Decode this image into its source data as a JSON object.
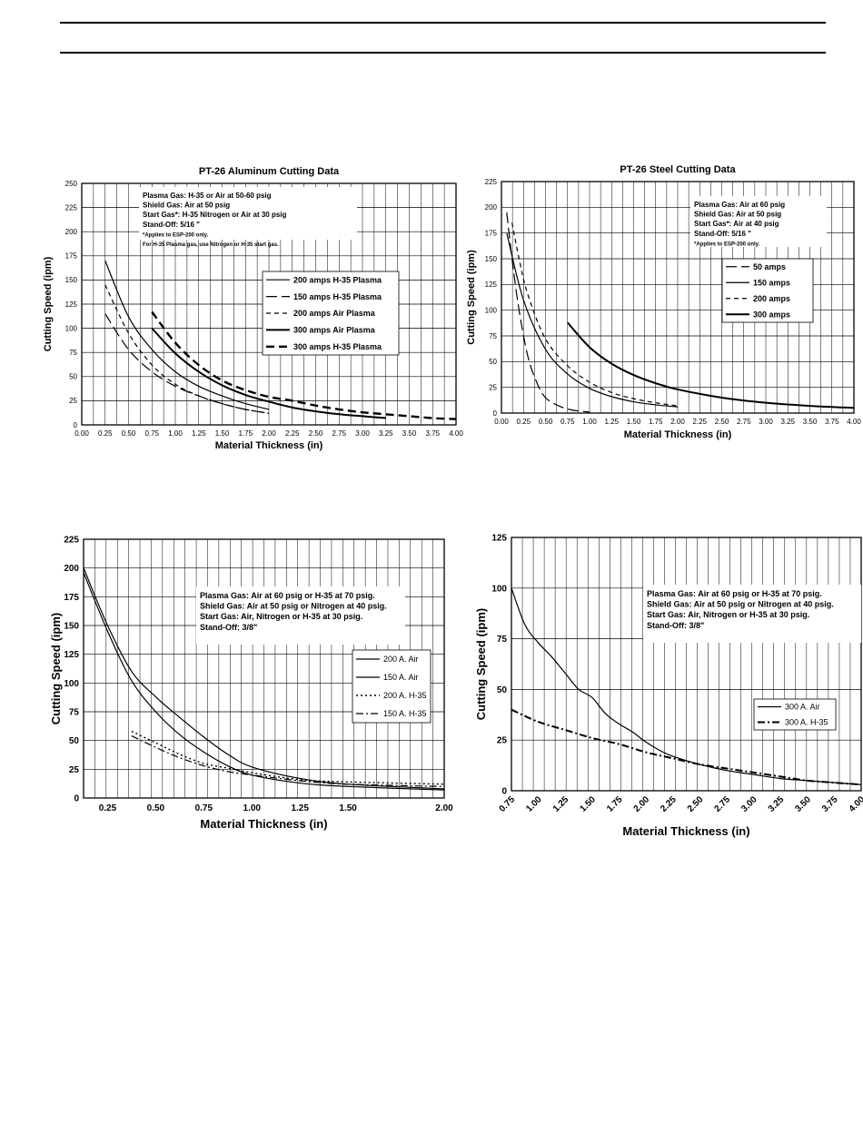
{
  "chart_data": [
    {
      "type": "line",
      "title": "PT-26 Aluminum Cutting Data",
      "xlabel": "Material Thickness (in)",
      "ylabel": "Cutting Speed (ipm)",
      "xlim": [
        0,
        4
      ],
      "ylim": [
        0,
        250
      ],
      "xticks": [
        0,
        0.25,
        0.5,
        0.75,
        1,
        1.25,
        1.5,
        1.75,
        2,
        2.25,
        2.5,
        2.75,
        3,
        3.25,
        3.5,
        3.75,
        4
      ],
      "xtick_labels": [
        "0.00",
        "0.25",
        "0.50",
        "0.75",
        "1.00",
        "1.25",
        "1.50",
        "1.75",
        "2.00",
        "2.25",
        "2.50",
        "2.75",
        "3.00",
        "3.25",
        "3.50",
        "3.75",
        "4.00"
      ],
      "yticks": [
        0,
        25,
        50,
        75,
        100,
        125,
        150,
        175,
        200,
        225,
        250
      ],
      "ytick_labels": [
        "0",
        "25",
        "50",
        "75",
        "100",
        "125",
        "150",
        "175",
        "200",
        "225",
        "250"
      ],
      "grid": true,
      "notes": [
        "Plasma Gas: H-35  or Air at 50-60 psig",
        "Shield Gas: Air at 50 psig",
        "Start Gas*: H-35 Nitrogen or Air at 30 psig",
        "Stand-Off: 5/16 \"",
        "*Applies to ESP-200 only.",
        " For H-35 Plasma gas, use Nitrogen or H-35 start gas."
      ],
      "legend_position": "upper-right",
      "series": [
        {
          "name": "200 amps H-35 Plasma",
          "style": "solid",
          "x": [
            0.25,
            0.5,
            0.75,
            1,
            1.25,
            1.5,
            1.75,
            2
          ],
          "y": [
            170,
            112,
            78,
            55,
            40,
            30,
            22,
            16
          ]
        },
        {
          "name": "150 amps H-35 Plasma",
          "style": "longdash",
          "x": [
            0.25,
            0.5,
            0.75,
            1,
            1.25,
            1.5,
            1.75,
            2
          ],
          "y": [
            115,
            78,
            55,
            40,
            30,
            22,
            16,
            12
          ]
        },
        {
          "name": "200 amps Air Plasma",
          "style": "dash",
          "x": [
            0.25,
            0.5,
            0.75,
            1,
            1.25,
            1.5,
            1.75,
            2
          ],
          "y": [
            145,
            95,
            62,
            42,
            30,
            22,
            16,
            12
          ]
        },
        {
          "name": "300 amps Air Plasma",
          "style": "solid-thick",
          "x": [
            0.75,
            1,
            1.25,
            1.5,
            1.75,
            2,
            2.25,
            2.5,
            2.75,
            3,
            3.25
          ],
          "y": [
            100,
            74,
            55,
            41,
            31,
            24,
            18,
            14,
            11,
            9,
            7
          ]
        },
        {
          "name": "300 amps H-35 Plasma",
          "style": "heavydash",
          "x": [
            0.75,
            1,
            1.25,
            1.5,
            1.75,
            2,
            2.25,
            2.5,
            2.75,
            3,
            3.25,
            3.5,
            3.75,
            4
          ],
          "y": [
            117,
            85,
            62,
            46,
            36,
            29,
            25,
            20,
            16,
            13,
            11,
            9,
            7,
            6
          ]
        }
      ]
    },
    {
      "type": "line",
      "title": "PT-26 Steel Cutting Data",
      "xlabel": "Material Thickness (in)",
      "ylabel": "Cutting Speed (ipm)",
      "xlim": [
        0,
        4
      ],
      "ylim": [
        0,
        225
      ],
      "xticks": [
        0,
        0.25,
        0.5,
        0.75,
        1,
        1.25,
        1.5,
        1.75,
        2,
        2.25,
        2.5,
        2.75,
        3,
        3.25,
        3.5,
        3.75,
        4
      ],
      "xtick_labels": [
        "0.00",
        "0.25",
        "0.50",
        "0.75",
        "1.00",
        "1.25",
        "1.50",
        "1.75",
        "2.00",
        "2.25",
        "2.50",
        "2.75",
        "3.00",
        "3.25",
        "3.50",
        "3.75",
        "4.00"
      ],
      "yticks": [
        0,
        25,
        50,
        75,
        100,
        125,
        150,
        175,
        200,
        225
      ],
      "ytick_labels": [
        "0",
        "25",
        "50",
        "75",
        "100",
        "125",
        "150",
        "175",
        "200",
        "225"
      ],
      "grid": true,
      "notes": [
        "Plasma Gas: Air at 60 psig",
        "Shield Gas: Air at 50 psig",
        "Start Gas*: Air at 40 psig",
        "Stand-Off: 5/16 \"",
        "*Applies to ESP-200 only."
      ],
      "legend_position": "upper-right",
      "series": [
        {
          "name": "50 amps",
          "style": "longdash",
          "x": [
            0.06,
            0.12,
            0.2,
            0.3,
            0.4,
            0.5,
            0.65,
            0.8,
            1
          ],
          "y": [
            195,
            150,
            100,
            55,
            30,
            15,
            7,
            3,
            1
          ]
        },
        {
          "name": "150 amps",
          "style": "solid",
          "x": [
            0.06,
            0.25,
            0.5,
            0.75,
            1,
            1.25,
            1.5,
            1.75,
            2
          ],
          "y": [
            175,
            110,
            62,
            38,
            24,
            16,
            11,
            8,
            6
          ]
        },
        {
          "name": "200 amps",
          "style": "dash",
          "x": [
            0.12,
            0.2,
            0.3,
            0.5,
            0.75,
            1,
            1.25,
            1.5,
            1.75,
            2
          ],
          "y": [
            185,
            150,
            115,
            72,
            46,
            30,
            20,
            14,
            10,
            7
          ]
        },
        {
          "name": "300 amps",
          "style": "solid-thick",
          "x": [
            0.75,
            1,
            1.25,
            1.5,
            1.75,
            2,
            2.5,
            3,
            3.5,
            4
          ],
          "y": [
            88,
            64,
            48,
            37,
            29,
            23,
            15,
            10,
            7,
            5
          ]
        }
      ]
    },
    {
      "type": "line",
      "title": "",
      "xlabel": "Material Thickness (in)",
      "ylabel": "Cutting Speed (ipm)",
      "xlim": [
        0.125,
        2
      ],
      "ylim": [
        0,
        225
      ],
      "xticks": [
        0.25,
        0.5,
        0.75,
        1,
        1.25,
        1.5,
        2
      ],
      "xtick_labels": [
        "0.25",
        "0.50",
        "0.75",
        "1.00",
        "1.25",
        "1.50",
        "2.00"
      ],
      "yticks": [
        0,
        25,
        50,
        75,
        100,
        125,
        150,
        175,
        200,
        225
      ],
      "ytick_labels": [
        "0",
        "25",
        "50",
        "75",
        "100",
        "125",
        "150",
        "175",
        "200",
        "225"
      ],
      "grid": true,
      "notes": [
        "Plasma Gas:  Air at 60 psig or H-35 at 70 psig.",
        "Shield Gas:  Air at 50 psig or Nitrogen at 40 psig.",
        "Start Gas:  Air, Nitrogen or H-35 at 30 psig.",
        "Stand-Off:  3/8\""
      ],
      "legend_position": "right",
      "series": [
        {
          "name": "200 A. Air",
          "style": "solid",
          "x": [
            0.125,
            0.25,
            0.375,
            0.5,
            0.625,
            0.75,
            0.875,
            1,
            1.25,
            1.5,
            2
          ],
          "y": [
            200,
            150,
            110,
            88,
            70,
            53,
            38,
            27,
            17,
            12,
            8
          ]
        },
        {
          "name": "150 A. Air",
          "style": "solid",
          "x": [
            0.125,
            0.25,
            0.375,
            0.5,
            0.625,
            0.75,
            0.875,
            1,
            1.25,
            1.5,
            2
          ],
          "y": [
            196,
            145,
            102,
            75,
            55,
            40,
            28,
            20,
            13,
            10,
            7
          ]
        },
        {
          "name": "200 A. H-35",
          "style": "dot",
          "x": [
            0.375,
            0.5,
            0.625,
            0.75,
            0.875,
            1,
            1.25,
            1.5,
            2
          ],
          "y": [
            58,
            48,
            38,
            30,
            26,
            22,
            16,
            14,
            12
          ]
        },
        {
          "name": "150 A. H-35",
          "style": "dashdot",
          "x": [
            0.375,
            0.5,
            0.625,
            0.75,
            0.875,
            1,
            1.25,
            1.5,
            2
          ],
          "y": [
            54,
            44,
            35,
            28,
            23,
            20,
            15,
            12,
            10
          ]
        }
      ]
    },
    {
      "type": "line",
      "title": "",
      "xlabel": "Material Thickness (in)",
      "ylabel": "Cutting Speed (ipm)",
      "xlim": [
        0.75,
        4
      ],
      "ylim": [
        0,
        125
      ],
      "xticks": [
        0.75,
        1,
        1.25,
        1.5,
        1.75,
        2,
        2.25,
        2.5,
        2.75,
        3,
        3.25,
        3.5,
        3.75,
        4
      ],
      "xtick_labels": [
        "0.75",
        "1.00",
        "1.25",
        "1.50",
        "1.75",
        "2.00",
        "2.25",
        "2.50",
        "2.75",
        "3.00",
        "3.25",
        "3.50",
        "3.75",
        "4.00"
      ],
      "yticks": [
        0,
        25,
        50,
        75,
        100,
        125
      ],
      "ytick_labels": [
        "0",
        "25",
        "50",
        "75",
        "100",
        "125"
      ],
      "grid": true,
      "notes": [
        "Plasma Gas:  Air at 60 psig or H-35 at 70 psig.",
        "Shield Gas:  Air at 50 psig or Nitrogen at 40 psig.",
        "Start Gas:  Air, Nitrogen or H-35 at 30 psig.",
        "Stand-Off:  3/8\""
      ],
      "legend_position": "right",
      "series": [
        {
          "name": "300 A. Air",
          "style": "solid",
          "x": [
            0.75,
            0.875,
            1,
            1.125,
            1.25,
            1.375,
            1.5,
            1.625,
            1.75,
            1.875,
            2,
            2.125,
            2.25,
            2.5,
            2.75,
            3,
            3.25,
            3.5,
            3.75,
            4
          ],
          "y": [
            100,
            82,
            73,
            66,
            58,
            50,
            46,
            38,
            33,
            29,
            24,
            20,
            17,
            13,
            10,
            8,
            6,
            5,
            4,
            3
          ]
        },
        {
          "name": "300 A. H-35",
          "style": "dashdot-thick",
          "x": [
            0.75,
            1,
            1.25,
            1.5,
            1.75,
            2,
            2.25,
            2.5,
            2.75,
            3,
            3.25,
            3.5,
            3.75,
            4
          ],
          "y": [
            40,
            34,
            30,
            26,
            23,
            19,
            16,
            13,
            11,
            9,
            7,
            5,
            4,
            3
          ]
        }
      ]
    }
  ]
}
